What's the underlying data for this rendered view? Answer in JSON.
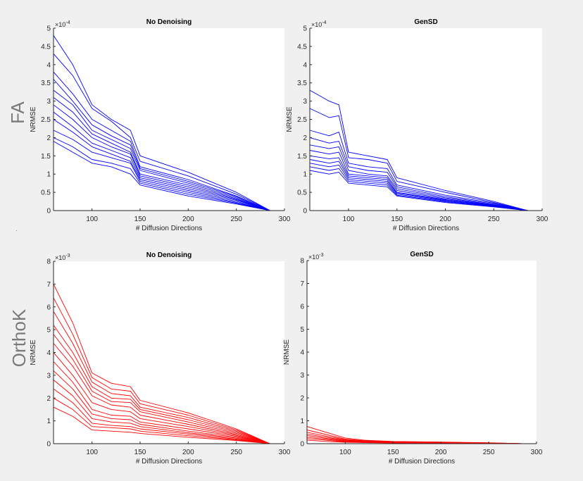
{
  "figure": {
    "row_labels": [
      "FA",
      "OrthoK"
    ],
    "dot_mark": "."
  },
  "chart_data": [
    {
      "type": "line",
      "panel": "fa-no-denoising",
      "title": "No Denoising",
      "xlabel": "# Diffusion Directions",
      "ylabel": "NRMSE",
      "exponent_label": "×10",
      "exponent_power": "-4",
      "xlim": [
        60,
        300
      ],
      "ylim": [
        0,
        5
      ],
      "xticks": [
        100,
        150,
        200,
        250,
        300
      ],
      "xtick_labels": [
        "100",
        "150",
        "200",
        "250",
        "300"
      ],
      "yticks": [
        0,
        0.5,
        1,
        1.5,
        2,
        2.5,
        3,
        3.5,
        4,
        4.5,
        5
      ],
      "ytick_labels": [
        "0",
        "0.5",
        "1",
        "1.5",
        "2",
        "2.5",
        "3",
        "3.5",
        "4",
        "4.5",
        "5"
      ],
      "color": "#0000ff",
      "x": [
        60,
        80,
        100,
        120,
        140,
        150,
        200,
        250,
        285
      ],
      "series": [
        {
          "name": "s1",
          "values": [
            4.8,
            4.0,
            2.9,
            2.5,
            2.2,
            1.5,
            1.05,
            0.5,
            0
          ]
        },
        {
          "name": "s2",
          "values": [
            4.3,
            3.7,
            2.8,
            2.45,
            2.0,
            1.35,
            0.95,
            0.45,
            0
          ]
        },
        {
          "name": "s3",
          "values": [
            3.8,
            3.2,
            2.5,
            2.2,
            1.9,
            1.2,
            0.85,
            0.4,
            0
          ]
        },
        {
          "name": "s4",
          "values": [
            3.6,
            3.0,
            2.35,
            2.05,
            1.8,
            1.15,
            0.8,
            0.38,
            0
          ]
        },
        {
          "name": "s5",
          "values": [
            3.3,
            2.9,
            2.2,
            1.95,
            1.7,
            1.1,
            0.75,
            0.35,
            0
          ]
        },
        {
          "name": "s6",
          "values": [
            3.1,
            2.7,
            2.1,
            1.85,
            1.6,
            1.0,
            0.7,
            0.32,
            0
          ]
        },
        {
          "name": "s7",
          "values": [
            2.9,
            2.5,
            2.0,
            1.75,
            1.55,
            0.95,
            0.65,
            0.3,
            0
          ]
        },
        {
          "name": "s8",
          "values": [
            2.7,
            2.3,
            1.85,
            1.65,
            1.45,
            0.9,
            0.6,
            0.28,
            0
          ]
        },
        {
          "name": "s9",
          "values": [
            2.5,
            2.15,
            1.75,
            1.55,
            1.35,
            0.85,
            0.55,
            0.25,
            0
          ]
        },
        {
          "name": "s10",
          "values": [
            2.2,
            1.95,
            1.6,
            1.45,
            1.3,
            0.8,
            0.5,
            0.22,
            0
          ]
        },
        {
          "name": "s11",
          "values": [
            2.0,
            1.75,
            1.4,
            1.3,
            1.15,
            0.75,
            0.45,
            0.2,
            0
          ]
        },
        {
          "name": "s12",
          "values": [
            1.9,
            1.6,
            1.3,
            1.2,
            1.0,
            0.7,
            0.4,
            0.18,
            0
          ]
        }
      ]
    },
    {
      "type": "line",
      "panel": "fa-gensd",
      "title": "GenSD",
      "xlabel": "# Diffusion Directions",
      "ylabel": "NRMSE",
      "exponent_label": "×10",
      "exponent_power": "-4",
      "xlim": [
        60,
        300
      ],
      "ylim": [
        0,
        5
      ],
      "xticks": [
        100,
        150,
        200,
        250,
        300
      ],
      "xtick_labels": [
        "100",
        "150",
        "200",
        "250",
        "300"
      ],
      "yticks": [
        0,
        0.5,
        1,
        1.5,
        2,
        2.5,
        3,
        3.5,
        4,
        4.5,
        5
      ],
      "ytick_labels": [
        "0",
        "0.5",
        "1",
        "1.5",
        "2",
        "2.5",
        "3",
        "3.5",
        "4",
        "4.5",
        "5"
      ],
      "color": "#0000ff",
      "x": [
        60,
        80,
        90,
        100,
        120,
        140,
        150,
        200,
        250,
        285
      ],
      "series": [
        {
          "name": "s1",
          "values": [
            3.3,
            3.0,
            2.9,
            1.6,
            1.5,
            1.4,
            0.9,
            0.55,
            0.25,
            0
          ]
        },
        {
          "name": "s2",
          "values": [
            2.8,
            2.55,
            2.6,
            1.45,
            1.4,
            1.3,
            0.8,
            0.5,
            0.22,
            0
          ]
        },
        {
          "name": "s3",
          "values": [
            2.2,
            2.05,
            2.15,
            1.3,
            1.2,
            1.15,
            0.7,
            0.42,
            0.2,
            0
          ]
        },
        {
          "name": "s4",
          "values": [
            2.0,
            1.85,
            1.9,
            1.2,
            1.1,
            1.05,
            0.65,
            0.38,
            0.18,
            0
          ]
        },
        {
          "name": "s5",
          "values": [
            1.8,
            1.7,
            1.75,
            1.1,
            1.0,
            0.95,
            0.6,
            0.35,
            0.16,
            0
          ]
        },
        {
          "name": "s6",
          "values": [
            1.65,
            1.55,
            1.6,
            1.0,
            0.95,
            0.9,
            0.55,
            0.32,
            0.15,
            0
          ]
        },
        {
          "name": "s7",
          "values": [
            1.5,
            1.42,
            1.45,
            0.95,
            0.9,
            0.85,
            0.5,
            0.3,
            0.14,
            0
          ]
        },
        {
          "name": "s8",
          "values": [
            1.4,
            1.3,
            1.35,
            0.9,
            0.85,
            0.8,
            0.48,
            0.28,
            0.13,
            0
          ]
        },
        {
          "name": "s9",
          "values": [
            1.3,
            1.2,
            1.25,
            0.85,
            0.8,
            0.75,
            0.45,
            0.26,
            0.12,
            0
          ]
        },
        {
          "name": "s10",
          "values": [
            1.2,
            1.1,
            1.15,
            0.8,
            0.75,
            0.7,
            0.42,
            0.24,
            0.11,
            0
          ]
        },
        {
          "name": "s11",
          "values": [
            1.1,
            1.0,
            1.05,
            0.75,
            0.7,
            0.65,
            0.4,
            0.22,
            0.1,
            0
          ]
        }
      ]
    },
    {
      "type": "line",
      "panel": "orthok-no-denoising",
      "title": "No Denoising",
      "xlabel": "# Diffusion Directions",
      "ylabel": "NRMSE",
      "exponent_label": "×10",
      "exponent_power": "-3",
      "xlim": [
        60,
        300
      ],
      "ylim": [
        0,
        8
      ],
      "xticks": [
        100,
        150,
        200,
        250,
        300
      ],
      "xtick_labels": [
        "100",
        "150",
        "200",
        "250",
        "300"
      ],
      "yticks": [
        0,
        1,
        2,
        3,
        4,
        5,
        6,
        7,
        8
      ],
      "ytick_labels": [
        "0",
        "1",
        "2",
        "3",
        "4",
        "5",
        "6",
        "7",
        "8"
      ],
      "color": "#ff0000",
      "x": [
        60,
        80,
        100,
        120,
        140,
        150,
        200,
        250,
        285
      ],
      "series": [
        {
          "name": "s1",
          "values": [
            7.0,
            5.3,
            3.1,
            2.65,
            2.5,
            1.9,
            1.35,
            0.65,
            0
          ]
        },
        {
          "name": "s2",
          "values": [
            6.4,
            4.8,
            2.9,
            2.4,
            2.3,
            1.75,
            1.25,
            0.6,
            0
          ]
        },
        {
          "name": "s3",
          "values": [
            5.8,
            4.4,
            2.7,
            2.2,
            2.1,
            1.6,
            1.15,
            0.55,
            0
          ]
        },
        {
          "name": "s4",
          "values": [
            5.2,
            4.0,
            2.5,
            2.0,
            1.95,
            1.5,
            1.05,
            0.5,
            0
          ]
        },
        {
          "name": "s5",
          "values": [
            4.8,
            3.7,
            2.3,
            1.85,
            1.8,
            1.4,
            0.95,
            0.45,
            0
          ]
        },
        {
          "name": "s6",
          "values": [
            4.4,
            3.4,
            2.1,
            1.7,
            1.6,
            1.25,
            0.85,
            0.4,
            0
          ]
        },
        {
          "name": "s7",
          "values": [
            4.0,
            3.0,
            1.8,
            1.5,
            1.4,
            1.1,
            0.75,
            0.36,
            0
          ]
        },
        {
          "name": "s8",
          "values": [
            3.6,
            2.7,
            1.5,
            1.25,
            1.2,
            0.95,
            0.65,
            0.32,
            0
          ]
        },
        {
          "name": "s9",
          "values": [
            3.2,
            2.4,
            1.3,
            1.1,
            1.05,
            0.85,
            0.55,
            0.28,
            0
          ]
        },
        {
          "name": "s10",
          "values": [
            2.8,
            2.1,
            1.1,
            0.95,
            0.9,
            0.75,
            0.48,
            0.24,
            0
          ]
        },
        {
          "name": "s11",
          "values": [
            2.4,
            1.8,
            0.9,
            0.8,
            0.75,
            0.65,
            0.42,
            0.2,
            0
          ]
        },
        {
          "name": "s12",
          "values": [
            2.0,
            1.5,
            0.75,
            0.7,
            0.65,
            0.55,
            0.35,
            0.17,
            0
          ]
        },
        {
          "name": "s13",
          "values": [
            1.6,
            1.2,
            0.6,
            0.55,
            0.5,
            0.45,
            0.28,
            0.14,
            0
          ]
        }
      ]
    },
    {
      "type": "line",
      "panel": "orthok-gensd",
      "title": "GenSD",
      "xlabel": "# Diffusion Directions",
      "ylabel": "NRMSE",
      "exponent_label": "×10",
      "exponent_power": "-3",
      "xlim": [
        60,
        300
      ],
      "ylim": [
        0,
        8
      ],
      "xticks": [
        100,
        150,
        200,
        250,
        300
      ],
      "xtick_labels": [
        "100",
        "150",
        "200",
        "250",
        "300"
      ],
      "yticks": [
        0,
        1,
        2,
        3,
        4,
        5,
        6,
        7,
        8
      ],
      "ytick_labels": [
        "0",
        "1",
        "2",
        "3",
        "4",
        "5",
        "6",
        "7",
        "8"
      ],
      "color": "#ff0000",
      "x": [
        60,
        80,
        100,
        120,
        150,
        200,
        250,
        285
      ],
      "series": [
        {
          "name": "s1",
          "values": [
            0.75,
            0.5,
            0.25,
            0.15,
            0.1,
            0.07,
            0.04,
            0
          ]
        },
        {
          "name": "s2",
          "values": [
            0.6,
            0.4,
            0.2,
            0.13,
            0.09,
            0.06,
            0.035,
            0
          ]
        },
        {
          "name": "s3",
          "values": [
            0.5,
            0.33,
            0.17,
            0.11,
            0.08,
            0.05,
            0.03,
            0
          ]
        },
        {
          "name": "s4",
          "values": [
            0.42,
            0.28,
            0.14,
            0.1,
            0.07,
            0.045,
            0.025,
            0
          ]
        },
        {
          "name": "s5",
          "values": [
            0.35,
            0.23,
            0.12,
            0.08,
            0.06,
            0.04,
            0.022,
            0
          ]
        },
        {
          "name": "s6",
          "values": [
            0.28,
            0.19,
            0.1,
            0.07,
            0.05,
            0.032,
            0.018,
            0
          ]
        },
        {
          "name": "s7",
          "values": [
            0.22,
            0.15,
            0.08,
            0.06,
            0.04,
            0.026,
            0.015,
            0
          ]
        },
        {
          "name": "s8",
          "values": [
            0.15,
            0.1,
            0.06,
            0.045,
            0.03,
            0.02,
            0.012,
            0
          ]
        }
      ]
    }
  ]
}
